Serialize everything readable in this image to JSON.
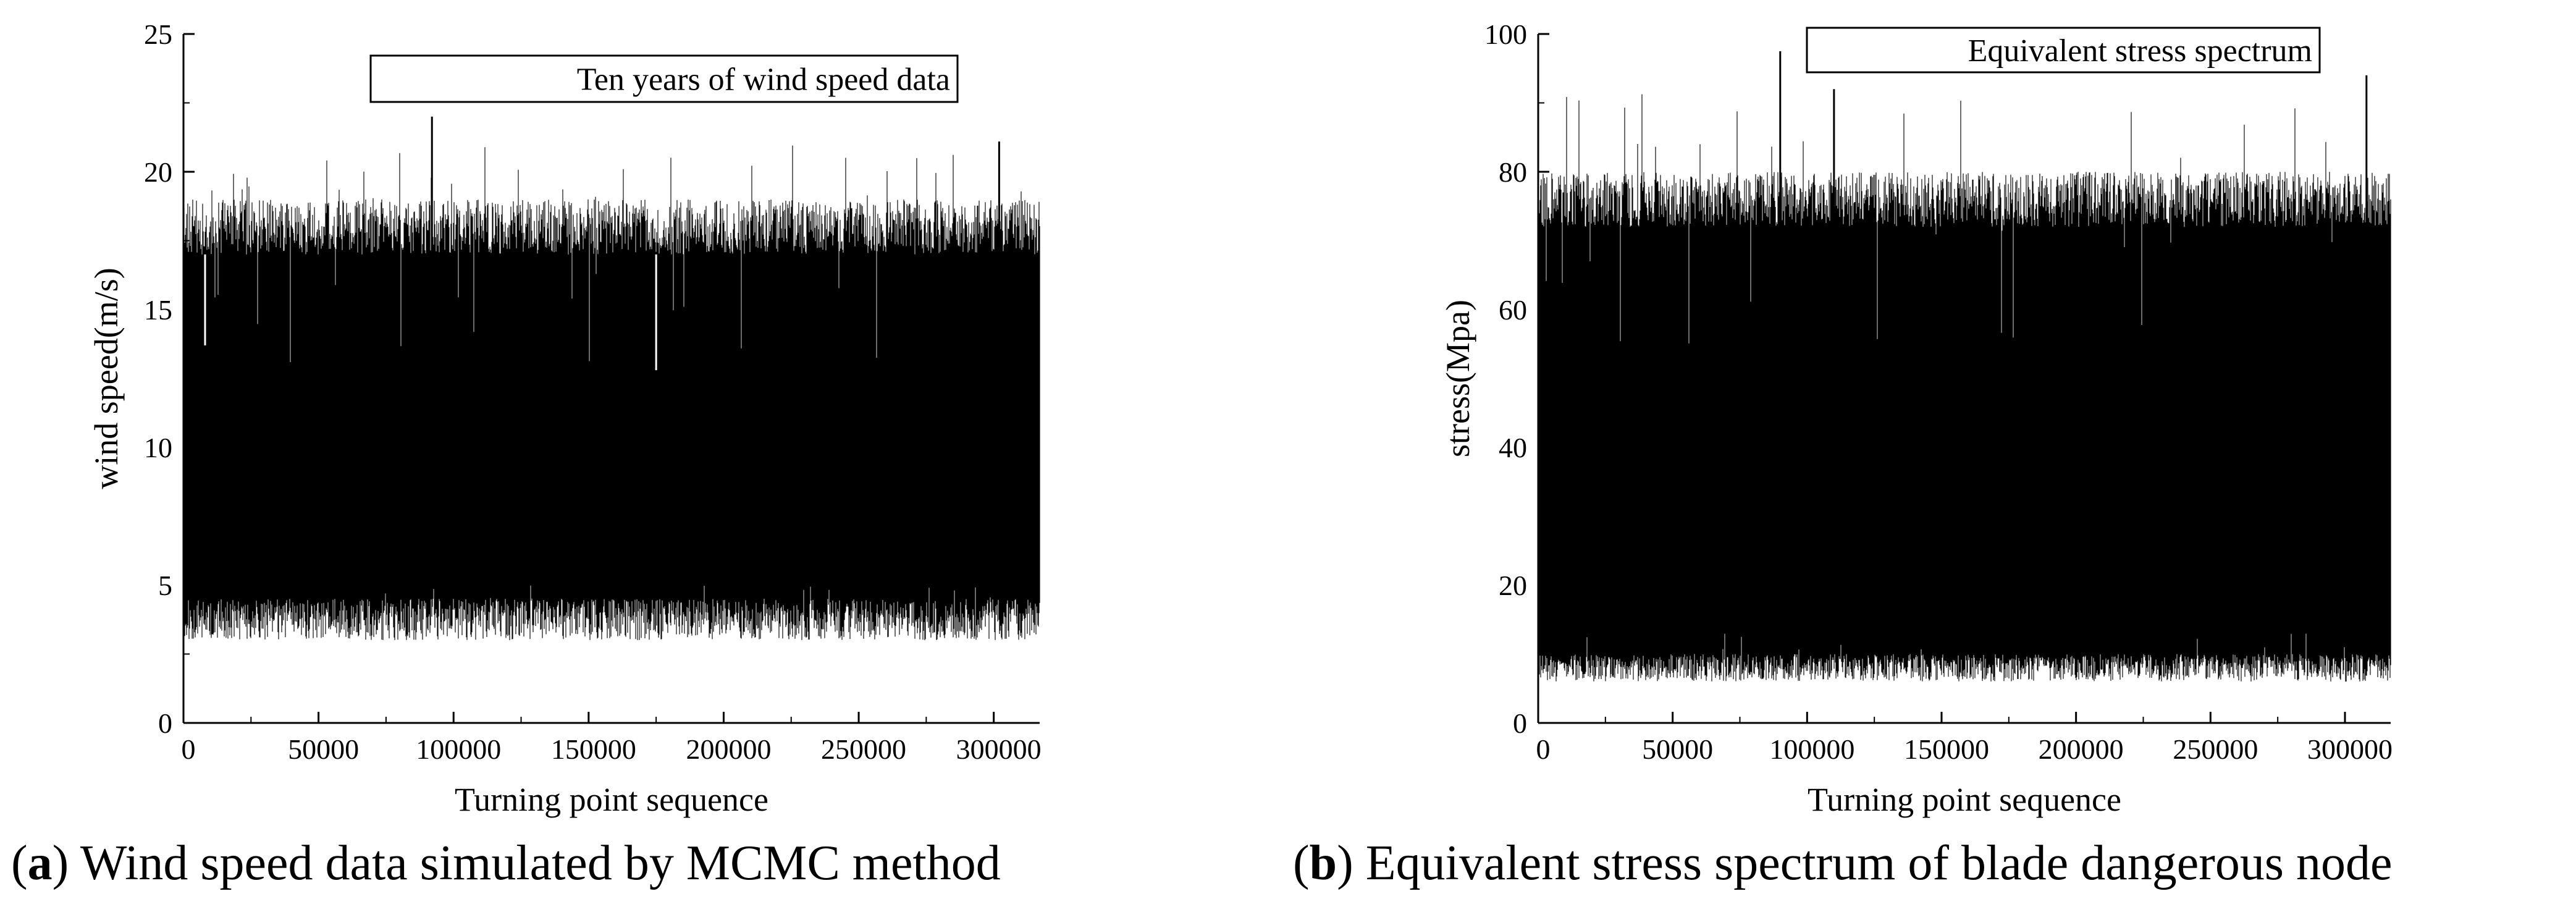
{
  "chart_data": [
    {
      "type": "line",
      "title": "",
      "legend": "Ten years of wind speed data",
      "legend_position": "top-center",
      "xlabel": "Turning point sequence",
      "ylabel": "wind speed(m/s)",
      "xlim": [
        0,
        317000
      ],
      "ylim": [
        0,
        25
      ],
      "xticks": [
        0,
        50000,
        100000,
        150000,
        200000,
        250000,
        300000
      ],
      "yticks": [
        0,
        5,
        10,
        15,
        20,
        25
      ],
      "grid": false,
      "envelope": {
        "low_min": 3,
        "low_max": 4.5,
        "high_min": 17,
        "high_max": 19,
        "spike_max": 22,
        "dip_up_min": 12.5,
        "dip_down_max": 5
      },
      "notable_points": [
        {
          "x": 92000,
          "y": 22
        },
        {
          "x": 302000,
          "y": 21.1
        },
        {
          "x": 8000,
          "y": 13.7
        },
        {
          "x": 175000,
          "y": 12.8
        }
      ],
      "caption_label": "a",
      "caption_text": " Wind speed data simulated by MCMC method"
    },
    {
      "type": "line",
      "title": "",
      "legend": "Equivalent stress spectrum",
      "legend_position": "top-right",
      "xlabel": "Turning point sequence",
      "ylabel": "stress(Mpa)",
      "xlim": [
        0,
        317000
      ],
      "ylim": [
        0,
        100
      ],
      "xticks": [
        0,
        50000,
        100000,
        150000,
        200000,
        250000,
        300000
      ],
      "yticks": [
        0,
        20,
        40,
        60,
        80,
        100
      ],
      "grid": false,
      "envelope": {
        "low_min": 6,
        "low_max": 10,
        "high_min": 72,
        "high_max": 80,
        "spike_max": 97.5,
        "dip_up_min": 55,
        "dip_down_max": 13
      },
      "notable_points": [
        {
          "x": 90000,
          "y": 97.5
        },
        {
          "x": 308000,
          "y": 94
        },
        {
          "x": 110000,
          "y": 92
        },
        {
          "x": 58000,
          "y": 13.5
        }
      ],
      "caption_label": "b",
      "caption_text": " Equivalent stress spectrum of blade dangerous node"
    }
  ]
}
